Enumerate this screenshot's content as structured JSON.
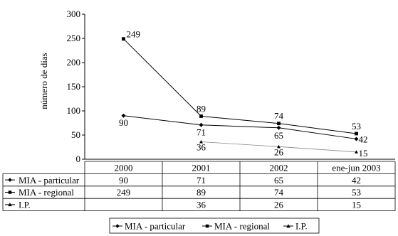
{
  "chart_data": {
    "type": "line",
    "title": "",
    "xlabel": "",
    "ylabel": "número de días",
    "ylim": [
      0,
      300
    ],
    "yticks": [
      0,
      50,
      100,
      150,
      200,
      250,
      300
    ],
    "categories": [
      "2000",
      "2001",
      "2002",
      "ene-jun 2003"
    ],
    "grid": false,
    "legend": "bottom",
    "data_table": true,
    "series": [
      {
        "name": "MIA - particular",
        "values": [
          90,
          71,
          65,
          42
        ],
        "marker": "diamond",
        "color": "#000000"
      },
      {
        "name": "MIA - regional",
        "values": [
          249,
          89,
          74,
          53
        ],
        "marker": "square",
        "color": "#000000"
      },
      {
        "name": "I.P.",
        "values": [
          null,
          36,
          26,
          15
        ],
        "marker": "triangle",
        "color": "#000000"
      }
    ]
  }
}
